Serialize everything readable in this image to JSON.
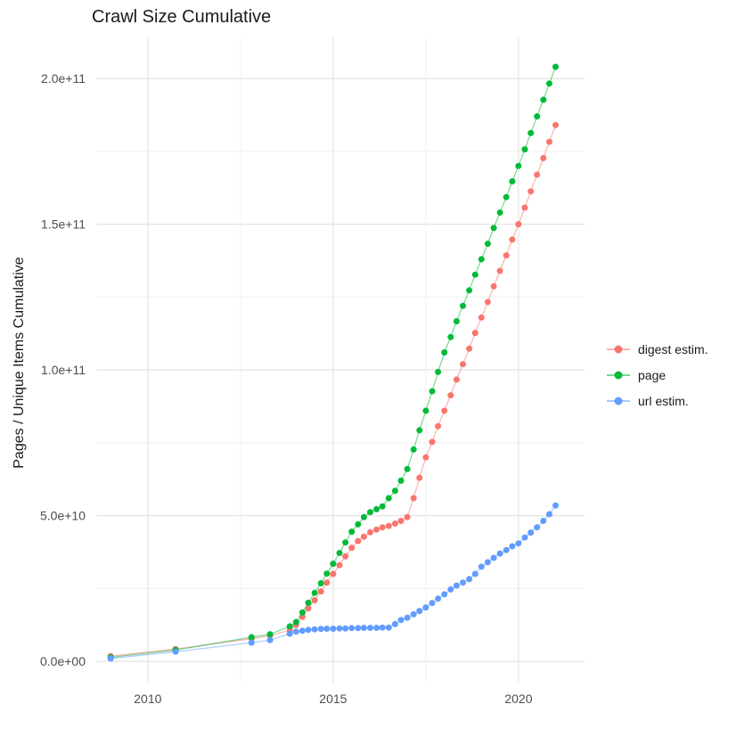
{
  "chart_data": {
    "type": "line",
    "title": "Crawl Size Cumulative",
    "xlabel": "",
    "ylabel": "Pages / Unique Items Cumulative",
    "legend_position": "right",
    "axes": {
      "xlim": [
        2008.61,
        2021.78
      ],
      "ylim": [
        -7300000000.0,
        214100000000.0
      ],
      "x_ticks": [
        2010,
        2015,
        2020
      ],
      "x_tick_labels": [
        "2010",
        "2015",
        "2020"
      ],
      "x_minor": [
        2012.5,
        2017.5
      ],
      "y_ticks": [
        0,
        50000000000.0,
        100000000000.0,
        150000000000.0,
        200000000000.0
      ],
      "y_tick_labels": [
        "0.0e+00",
        "5.0e+10",
        "1.0e+11",
        "1.5e+11",
        "2.0e+11"
      ],
      "y_minor": [
        25000000000.0,
        75000000000.0,
        125000000000.0,
        175000000000.0
      ],
      "grid": true
    },
    "x_years": [
      2009.0,
      2010.75,
      2012.8,
      2013.3,
      2013.83,
      2014.0,
      2014.17,
      2014.33,
      2014.5,
      2014.67,
      2014.83,
      2015.0,
      2015.17,
      2015.33,
      2015.5,
      2015.67,
      2015.83,
      2016.0,
      2016.17,
      2016.33,
      2016.5,
      2016.67,
      2016.83,
      2017.0,
      2017.17,
      2017.33,
      2017.5,
      2017.67,
      2017.83,
      2018.0,
      2018.17,
      2018.33,
      2018.5,
      2018.67,
      2018.83,
      2019.0,
      2019.17,
      2019.33,
      2019.5,
      2019.67,
      2019.83,
      2020.0,
      2020.17,
      2020.33,
      2020.5,
      2020.67,
      2020.83,
      2021.0
    ],
    "series": [
      {
        "id": "digest",
        "name": "digest estim.",
        "color": "#F8766D",
        "values": [
          1800000000.0,
          4200000000.0,
          7800000000.0,
          8800000000.0,
          10700000000.0,
          12500000000.0,
          15300000000.0,
          18200000000.0,
          21000000000.0,
          24000000000.0,
          27000000000.0,
          30000000000.0,
          33000000000.0,
          36000000000.0,
          39000000000.0,
          41300000000.0,
          42800000000.0,
          44300000000.0,
          45200000000.0,
          46000000000.0,
          46500000000.0,
          47300000000.0,
          48200000000.0,
          49500000000.0,
          56000000000.0,
          63000000000.0,
          70000000000.0,
          75300000000.0,
          80700000000.0,
          86000000000.0,
          91300000000.0,
          96700000000.0,
          102000000000.0,
          107300000000.0,
          112700000000.0,
          118000000000.0,
          123300000000.0,
          128700000000.0,
          134000000000.0,
          139300000000.0,
          144700000000.0,
          150000000000.0,
          155700000000.0,
          161300000000.0,
          167000000000.0,
          172700000000.0,
          178300000000.0,
          184000000000.0
        ]
      },
      {
        "id": "page",
        "name": "page",
        "color": "#00BA38",
        "values": [
          1400000000.0,
          3900000000.0,
          8300000000.0,
          9300000000.0,
          12000000000.0,
          13500000000.0,
          16800000000.0,
          20100000000.0,
          23500000000.0,
          26800000000.0,
          30100000000.0,
          33500000000.0,
          37200000000.0,
          40800000000.0,
          44500000000.0,
          47000000000.0,
          49500000000.0,
          51200000000.0,
          52200000000.0,
          53200000000.0,
          56000000000.0,
          58500000000.0,
          62000000000.0,
          66000000000.0,
          72700000000.0,
          79300000000.0,
          86000000000.0,
          92700000000.0,
          99300000000.0,
          106000000000.0,
          111300000000.0,
          116700000000.0,
          122000000000.0,
          127300000000.0,
          132700000000.0,
          138000000000.0,
          143300000000.0,
          148700000000.0,
          154000000000.0,
          159300000000.0,
          164700000000.0,
          170000000000.0,
          175700000000.0,
          181300000000.0,
          187000000000.0,
          192700000000.0,
          198300000000.0,
          204000000000.0
        ]
      },
      {
        "id": "url",
        "name": "url estim.",
        "color": "#619CFF",
        "values": [
          1000000000.0,
          3300000000.0,
          6400000000.0,
          7300000000.0,
          9500000000.0,
          10200000000.0,
          10500000000.0,
          10800000000.0,
          11000000000.0,
          11100000000.0,
          11200000000.0,
          11200000000.0,
          11300000000.0,
          11300000000.0,
          11400000000.0,
          11400000000.0,
          11500000000.0,
          11500000000.0,
          11500000000.0,
          11600000000.0,
          11600000000.0,
          12800000000.0,
          14200000000.0,
          15000000000.0,
          16200000000.0,
          17300000000.0,
          18500000000.0,
          20000000000.0,
          21500000000.0,
          23000000000.0,
          24700000000.0,
          26000000000.0,
          27000000000.0,
          28200000000.0,
          30000000000.0,
          32500000000.0,
          34000000000.0,
          35500000000.0,
          37000000000.0,
          38200000000.0,
          39500000000.0,
          40500000000.0,
          42500000000.0,
          44200000000.0,
          46000000000.0,
          48200000000.0,
          50500000000.0,
          53500000000.0
        ]
      }
    ],
    "style": {
      "grid_major_color": "#E4E4E4",
      "grid_minor_color": "#EFEFEF",
      "tick_label_color": "#4D4D4D",
      "title_color": "#1a1a1a",
      "point_radius": 3.5,
      "line_opacity": 0.55
    }
  }
}
